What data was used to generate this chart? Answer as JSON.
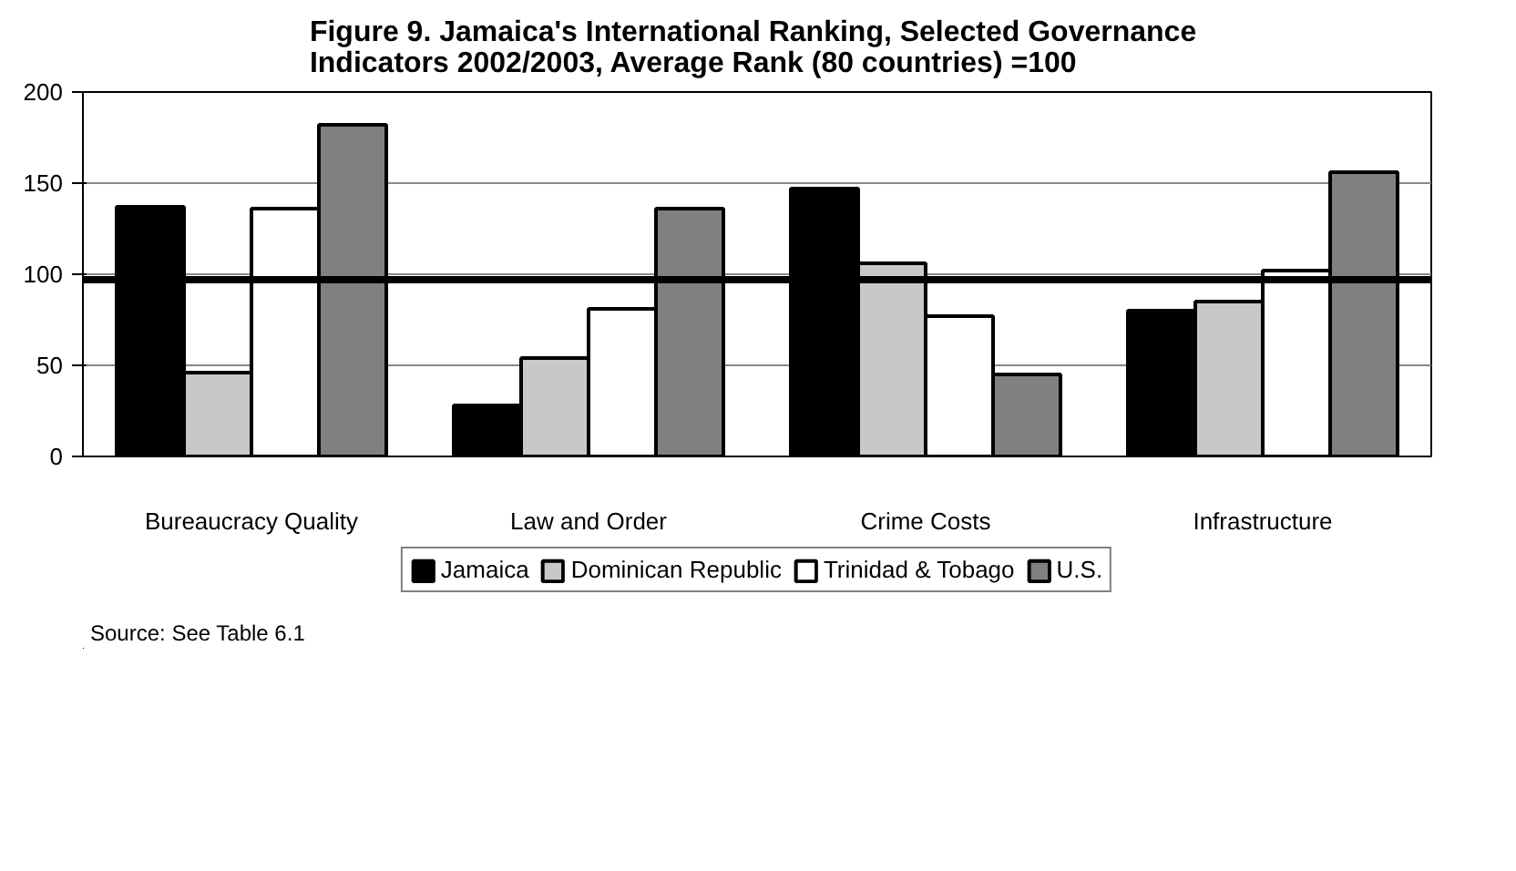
{
  "chart_data": {
    "type": "bar",
    "title": "Figure 9.  Jamaica's International Ranking, Selected Governance Indicators 2002/2003,  Average Rank (80 countries) =100",
    "categories": [
      "Bureaucracy Quality",
      "Law and Order",
      "Crime Costs",
      "Infrastructure"
    ],
    "series": [
      {
        "name": "Jamaica",
        "color": "#000000",
        "values": [
          137,
          28,
          147,
          80
        ]
      },
      {
        "name": "Dominican Republic",
        "color": "#c8c8c8",
        "values": [
          46,
          54,
          106,
          85
        ]
      },
      {
        "name": "Trinidad & Tobago",
        "color": "#ffffff",
        "values": [
          136,
          81,
          77,
          102
        ]
      },
      {
        "name": "U.S.",
        "color": "#808080",
        "values": [
          182,
          136,
          45,
          156
        ]
      }
    ],
    "ylim": [
      0,
      200
    ],
    "yticks": [
      0,
      50,
      100,
      150,
      200
    ],
    "grid": "y",
    "legend": "bottom",
    "ref_lines": [
      {
        "axis": "y",
        "value": 97
      }
    ],
    "annotations": [
      "Source:  See Table 6.1"
    ]
  }
}
